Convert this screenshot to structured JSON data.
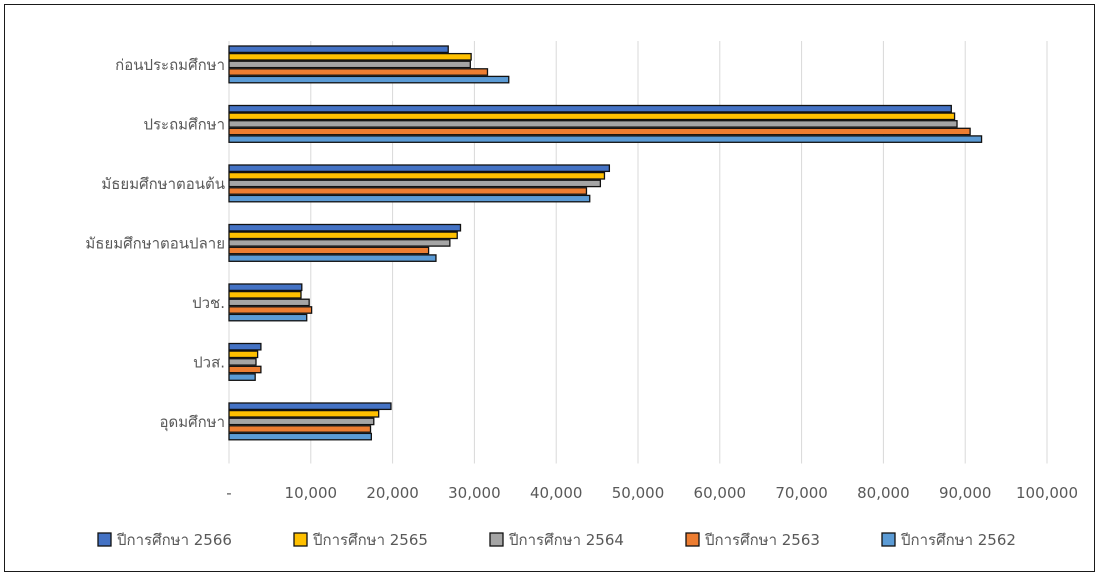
{
  "chart_data": {
    "type": "bar",
    "orientation": "horizontal",
    "categories": [
      "ก่อนประถมศึกษา",
      "ประถมศึกษา",
      "มัธยมศึกษาตอนต้น",
      "มัธยมศึกษาตอนปลาย",
      "ปวช.",
      "ปวส.",
      "อุดมศึกษา"
    ],
    "series": [
      {
        "name": "ปีการศึกษา 2566",
        "color": "#4472c4",
        "values": [
          26800,
          88300,
          46500,
          28300,
          8900,
          3900,
          19800
        ]
      },
      {
        "name": "ปีการศึกษา 2565",
        "color": "#ffc000",
        "values": [
          29600,
          88700,
          45900,
          27900,
          8800,
          3500,
          18300
        ]
      },
      {
        "name": "ปีการศึกษา 2564",
        "color": "#a5a5a5",
        "values": [
          29500,
          89000,
          45400,
          27000,
          9800,
          3300,
          17700
        ]
      },
      {
        "name": "ปีการศึกษา 2563",
        "color": "#ed7d31",
        "values": [
          31600,
          90600,
          43700,
          24400,
          10100,
          3900,
          17300
        ]
      },
      {
        "name": "ปีการศึกษา 2562",
        "color": "#5b9bd5",
        "values": [
          34200,
          92000,
          44100,
          25300,
          9500,
          3200,
          17400
        ]
      }
    ],
    "xlim": [
      0,
      100000
    ],
    "x_ticks": [
      "-",
      "10,000",
      "20,000",
      "30,000",
      "40,000",
      "50,000",
      "60,000",
      "70,000",
      "80,000",
      "90,000",
      "100,000"
    ],
    "grid": "vertical",
    "legend_position": "bottom",
    "title": "",
    "xlabel": "",
    "ylabel": ""
  }
}
